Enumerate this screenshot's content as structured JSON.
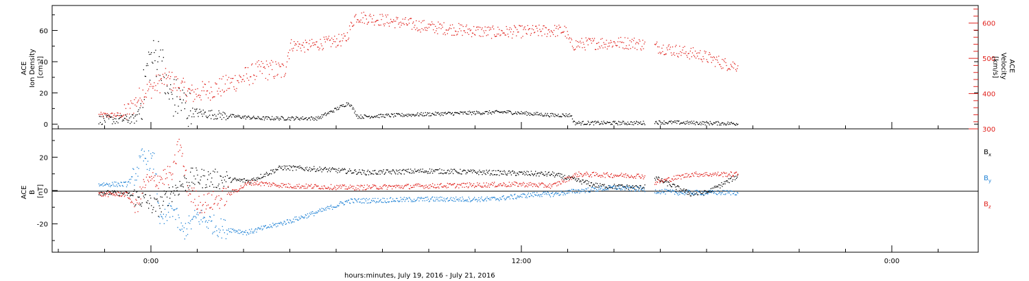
{
  "chart_data": [
    {
      "type": "scatter",
      "panel": "top",
      "ylabel": [
        "ACE",
        "Ion Density",
        "[cm⁻³]"
      ],
      "ylabel_right": [
        "ACE",
        "Velocity",
        "[km/s]"
      ],
      "ylim": [
        -3,
        76
      ],
      "ylim_right": [
        300,
        650
      ],
      "y_ticks": [
        0,
        20,
        40,
        60
      ],
      "y_ticks_right": [
        300,
        400,
        500,
        600
      ],
      "series": [
        {
          "name": "ACE Ion Density",
          "axis": "left",
          "color": "#000000",
          "knots": [
            [
              -1.7,
              3
            ],
            [
              -0.5,
              3.5
            ],
            [
              -0.3,
              16
            ],
            [
              -0.1,
              40
            ],
            [
              0.3,
              45
            ],
            [
              0.5,
              20
            ],
            [
              0.9,
              15
            ],
            [
              1.3,
              8
            ],
            [
              2.2,
              6
            ],
            [
              3.5,
              4
            ],
            [
              5.4,
              4
            ],
            [
              6.4,
              14
            ],
            [
              6.7,
              5
            ],
            [
              8,
              6
            ],
            [
              9.5,
              7
            ],
            [
              11.5,
              8
            ],
            [
              13,
              6
            ],
            [
              13.6,
              6
            ],
            [
              13.7,
              1
            ],
            [
              15.9,
              1
            ],
            [
              16.3,
              1.5
            ],
            [
              19,
              0.6
            ]
          ],
          "gaps": [
            [
              16.0,
              16.3
            ]
          ]
        },
        {
          "name": "ACE Velocity",
          "axis": "right",
          "color": "#e0201b",
          "knots": [
            [
              -1.7,
              340
            ],
            [
              -0.9,
              340
            ],
            [
              -0.8,
              345
            ],
            [
              -0.3,
              400
            ],
            [
              0.5,
              445
            ],
            [
              1.3,
              400
            ],
            [
              2.3,
              420
            ],
            [
              3.6,
              470
            ],
            [
              4.3,
              465
            ],
            [
              4.5,
              540
            ],
            [
              5,
              535
            ],
            [
              6.3,
              555
            ],
            [
              6.6,
              620
            ],
            [
              7.5,
              610
            ],
            [
              9,
              590
            ],
            [
              11,
              575
            ],
            [
              13.4,
              580
            ],
            [
              13.6,
              540
            ],
            [
              14.6,
              545
            ],
            [
              15.6,
              545
            ],
            [
              16.3,
              535
            ],
            [
              17.8,
              510
            ],
            [
              18.6,
              485
            ],
            [
              19,
              480
            ]
          ],
          "gaps": [
            [
              16.0,
              16.3
            ]
          ]
        }
      ]
    },
    {
      "type": "scatter",
      "panel": "bottom",
      "ylabel": [
        "ACE",
        "B",
        "[nT]"
      ],
      "ylim": [
        -37,
        37
      ],
      "y_ticks": [
        -20,
        0,
        20
      ],
      "series": [
        {
          "name": "Bx",
          "label_base": "B",
          "label_sub": "x",
          "color": "#000000",
          "knots": [
            [
              -1.7,
              -1
            ],
            [
              -0.8,
              -1.5
            ],
            [
              -0.3,
              -5
            ],
            [
              0.2,
              -10
            ],
            [
              0.7,
              0
            ],
            [
              1.3,
              8
            ],
            [
              2.2,
              7
            ],
            [
              3.2,
              6
            ],
            [
              4.2,
              14
            ],
            [
              5.5,
              13
            ],
            [
              7,
              11
            ],
            [
              9,
              12
            ],
            [
              11,
              11
            ],
            [
              13,
              10
            ],
            [
              14.5,
              3
            ],
            [
              15.9,
              2
            ],
            [
              16.3,
              8
            ],
            [
              17.5,
              -2
            ],
            [
              18,
              -1
            ],
            [
              19,
              9
            ]
          ],
          "gaps": [
            [
              16.0,
              16.3
            ]
          ]
        },
        {
          "name": "By",
          "label_base": "B",
          "label_sub": "y",
          "color": "#1a7fd4",
          "knots": [
            [
              -1.7,
              4
            ],
            [
              -0.8,
              4
            ],
            [
              -0.5,
              10
            ],
            [
              -0.3,
              20
            ],
            [
              0.1,
              17
            ],
            [
              0.3,
              -20
            ],
            [
              0.7,
              -10
            ],
            [
              1.0,
              -25
            ],
            [
              1.5,
              -15
            ],
            [
              2.2,
              -22
            ],
            [
              3.1,
              -25
            ],
            [
              4.5,
              -18
            ],
            [
              5.5,
              -12
            ],
            [
              6.4,
              -6
            ],
            [
              9,
              -5
            ],
            [
              11,
              -5
            ],
            [
              12.5,
              -2
            ],
            [
              13,
              -2
            ],
            [
              13.8,
              0
            ],
            [
              15,
              2
            ],
            [
              15.9,
              1
            ],
            [
              16.3,
              0
            ],
            [
              17,
              -1
            ],
            [
              19,
              -1
            ]
          ],
          "gaps": [
            [
              16.0,
              16.3
            ]
          ]
        },
        {
          "name": "Bz",
          "label_base": "B",
          "label_sub": "z",
          "color": "#e0201b",
          "knots": [
            [
              -1.7,
              -2
            ],
            [
              -0.8,
              -2
            ],
            [
              -0.5,
              -10
            ],
            [
              -0.2,
              5
            ],
            [
              0.2,
              7
            ],
            [
              0.7,
              10
            ],
            [
              0.9,
              30
            ],
            [
              1.2,
              0
            ],
            [
              1.6,
              -8
            ],
            [
              2.2,
              -5
            ],
            [
              3.2,
              5
            ],
            [
              4.5,
              3
            ],
            [
              6.5,
              2
            ],
            [
              9,
              3
            ],
            [
              12,
              4
            ],
            [
              13,
              3
            ],
            [
              13.8,
              10
            ],
            [
              15.9,
              9
            ],
            [
              16.3,
              5
            ],
            [
              17.5,
              10
            ],
            [
              19,
              10
            ]
          ],
          "gaps": [
            [
              16.0,
              16.3
            ]
          ]
        }
      ]
    }
  ],
  "x_axis": {
    "xlim": [
      -3.2,
      26.8
    ],
    "major_ticks": [
      {
        "value": 0,
        "label": "0:00"
      },
      {
        "value": 12,
        "label": "12:00"
      },
      {
        "value": 24,
        "label": "0:00"
      }
    ],
    "minor_tick_step": 1.5,
    "xlabel": "hours:minutes, July 19, 2016 - July 21, 2016"
  }
}
